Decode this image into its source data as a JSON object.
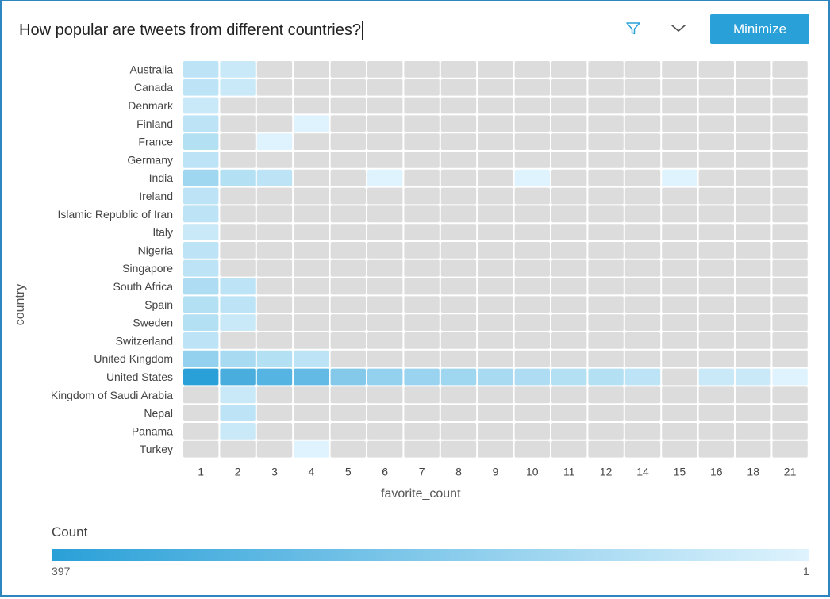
{
  "header": {
    "question": "How popular are tweets from different countries?",
    "minimize_label": "Minimize",
    "filter_icon": "filter-icon",
    "chevron_icon": "chevron-down-icon"
  },
  "colors": {
    "accent": "#2aa0d8",
    "empty_cell": "#dcdcdc",
    "scale_high": "#2aa0d8",
    "scale_low": "#def3fd"
  },
  "legend": {
    "title": "Count",
    "max_label": "397",
    "min_label": "1"
  },
  "chart_data": {
    "type": "heatmap",
    "xlabel": "favorite_count",
    "ylabel": "country",
    "x": [
      "1",
      "2",
      "3",
      "4",
      "5",
      "6",
      "7",
      "8",
      "9",
      "10",
      "11",
      "12",
      "14",
      "15",
      "16",
      "18",
      "21"
    ],
    "y": [
      "Australia",
      "Canada",
      "Denmark",
      "Finland",
      "France",
      "Germany",
      "India",
      "Ireland",
      "Islamic Republic of Iran",
      "Italy",
      "Nigeria",
      "Singapore",
      "South Africa",
      "Spain",
      "Sweden",
      "Switzerland",
      "United Kingdom",
      "United States",
      "Kingdom of Saudi Arabia",
      "Nepal",
      "Panama",
      "Turkey"
    ],
    "color_scale": {
      "min": 1,
      "max": 397
    },
    "values": [
      [
        3,
        2,
        null,
        null,
        null,
        null,
        null,
        null,
        null,
        null,
        null,
        null,
        null,
        null,
        null,
        null,
        null
      ],
      [
        3,
        2,
        null,
        null,
        null,
        null,
        null,
        null,
        null,
        null,
        null,
        null,
        null,
        null,
        null,
        null,
        null
      ],
      [
        2,
        null,
        null,
        null,
        null,
        null,
        null,
        null,
        null,
        null,
        null,
        null,
        null,
        null,
        null,
        null,
        null
      ],
      [
        3,
        null,
        null,
        1,
        null,
        null,
        null,
        null,
        null,
        null,
        null,
        null,
        null,
        null,
        null,
        null,
        null
      ],
      [
        4,
        null,
        1,
        null,
        null,
        null,
        null,
        null,
        null,
        null,
        null,
        null,
        null,
        null,
        null,
        null,
        null
      ],
      [
        3,
        null,
        null,
        null,
        null,
        null,
        null,
        null,
        null,
        null,
        null,
        null,
        null,
        null,
        null,
        null,
        null
      ],
      [
        8,
        4,
        3,
        null,
        null,
        1,
        null,
        null,
        null,
        1,
        null,
        null,
        null,
        1,
        null,
        null,
        null
      ],
      [
        3,
        null,
        null,
        null,
        null,
        null,
        null,
        null,
        null,
        null,
        null,
        null,
        null,
        null,
        null,
        null,
        null
      ],
      [
        3,
        null,
        null,
        null,
        null,
        null,
        null,
        null,
        null,
        null,
        null,
        null,
        null,
        null,
        null,
        null,
        null
      ],
      [
        2,
        null,
        null,
        null,
        null,
        null,
        null,
        null,
        null,
        null,
        null,
        null,
        null,
        null,
        null,
        null,
        null
      ],
      [
        3,
        null,
        null,
        null,
        null,
        null,
        null,
        null,
        null,
        null,
        null,
        null,
        null,
        null,
        null,
        null,
        null
      ],
      [
        3,
        null,
        null,
        null,
        null,
        null,
        null,
        null,
        null,
        null,
        null,
        null,
        null,
        null,
        null,
        null,
        null
      ],
      [
        5,
        3,
        null,
        null,
        null,
        null,
        null,
        null,
        null,
        null,
        null,
        null,
        null,
        null,
        null,
        null,
        null
      ],
      [
        4,
        3,
        null,
        null,
        null,
        null,
        null,
        null,
        null,
        null,
        null,
        null,
        null,
        null,
        null,
        null,
        null
      ],
      [
        4,
        2,
        null,
        null,
        null,
        null,
        null,
        null,
        null,
        null,
        null,
        null,
        null,
        null,
        null,
        null,
        null
      ],
      [
        3,
        null,
        null,
        null,
        null,
        null,
        null,
        null,
        null,
        null,
        null,
        null,
        null,
        null,
        null,
        null,
        null
      ],
      [
        12,
        6,
        4,
        3,
        null,
        null,
        null,
        null,
        null,
        null,
        null,
        null,
        null,
        null,
        null,
        null,
        null
      ],
      [
        397,
        140,
        95,
        60,
        20,
        12,
        10,
        8,
        6,
        5,
        4,
        4,
        3,
        null,
        2,
        2,
        1
      ],
      [
        null,
        2,
        null,
        null,
        null,
        null,
        null,
        null,
        null,
        null,
        null,
        null,
        null,
        null,
        null,
        null,
        null
      ],
      [
        null,
        3,
        null,
        null,
        null,
        null,
        null,
        null,
        null,
        null,
        null,
        null,
        null,
        null,
        null,
        null,
        null
      ],
      [
        null,
        2,
        null,
        null,
        null,
        null,
        null,
        null,
        null,
        null,
        null,
        null,
        null,
        null,
        null,
        null,
        null
      ],
      [
        null,
        null,
        null,
        1,
        null,
        null,
        null,
        null,
        null,
        null,
        null,
        null,
        null,
        null,
        null,
        null,
        null
      ]
    ]
  }
}
